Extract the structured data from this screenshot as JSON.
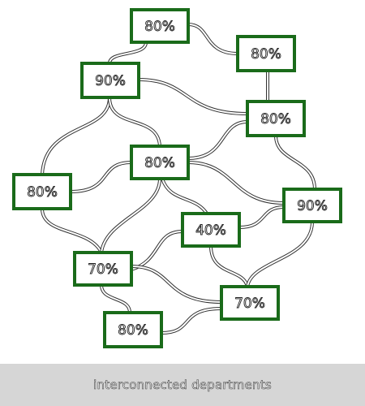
{
  "caption": "interconnected departments",
  "colors": {
    "node_border": "#1a6b1a",
    "edge": "#333333",
    "caption_bg": "#d6d6d6"
  },
  "nodes": [
    {
      "id": "n1",
      "label": "80%"
    },
    {
      "id": "n2",
      "label": "80%"
    },
    {
      "id": "n3",
      "label": "90%"
    },
    {
      "id": "n4",
      "label": "80%"
    },
    {
      "id": "n5",
      "label": "80%"
    },
    {
      "id": "n6",
      "label": "80%"
    },
    {
      "id": "n7",
      "label": "90%"
    },
    {
      "id": "n8",
      "label": "40%"
    },
    {
      "id": "n9",
      "label": "70%"
    },
    {
      "id": "n10",
      "label": "70%"
    },
    {
      "id": "n11",
      "label": "80%"
    }
  ]
}
